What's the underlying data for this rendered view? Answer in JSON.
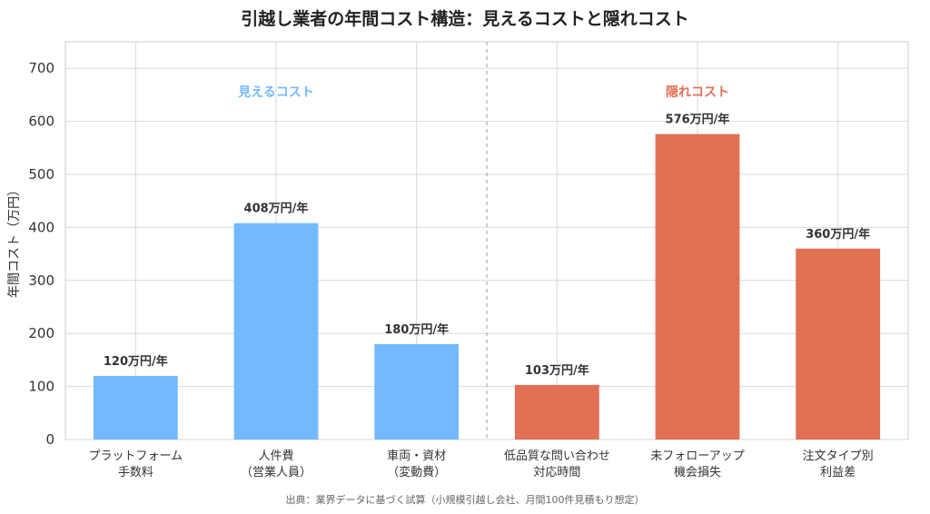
{
  "title": "引越し業者の年間コスト構造：見えるコストと隠れコスト",
  "source_note": "出典：業界データに基づく試算（小規模引越し会社、月間100件見積もり想定）",
  "chart_data": {
    "type": "bar",
    "title": "引越し業者の年間コスト構造：見えるコストと隠れコスト",
    "ylabel": "年間コスト（万円）",
    "xlabel": "",
    "ylim": [
      0,
      750
    ],
    "yticks": [
      0,
      100,
      200,
      300,
      400,
      500,
      600,
      700
    ],
    "grid": true,
    "categories": [
      [
        "プラットフォーム",
        "手数料"
      ],
      [
        "人件費",
        "（営業人員）"
      ],
      [
        "車両・資材",
        "（変動費）"
      ],
      [
        "低品質な問い合わせ",
        "対応時間"
      ],
      [
        "未フォローアップ",
        "機会損失"
      ],
      [
        "注文タイプ別",
        "利益差"
      ]
    ],
    "values": [
      120,
      408,
      180,
      103,
      576,
      360
    ],
    "data_labels": [
      "120万円/年",
      "408万円/年",
      "180万円/年",
      "103万円/年",
      "576万円/年",
      "360万円/年"
    ],
    "groups": [
      {
        "label": "見えるコスト",
        "color": "#74b9ff",
        "indices": [
          0,
          1,
          2
        ]
      },
      {
        "label": "隠れコスト",
        "color": "#e17055",
        "indices": [
          3,
          4,
          5
        ]
      }
    ],
    "colors": {
      "visible": "#74b9ff",
      "hidden": "#e17055",
      "grid": "#d9d9d9",
      "divider": "#aaaaaa"
    }
  }
}
